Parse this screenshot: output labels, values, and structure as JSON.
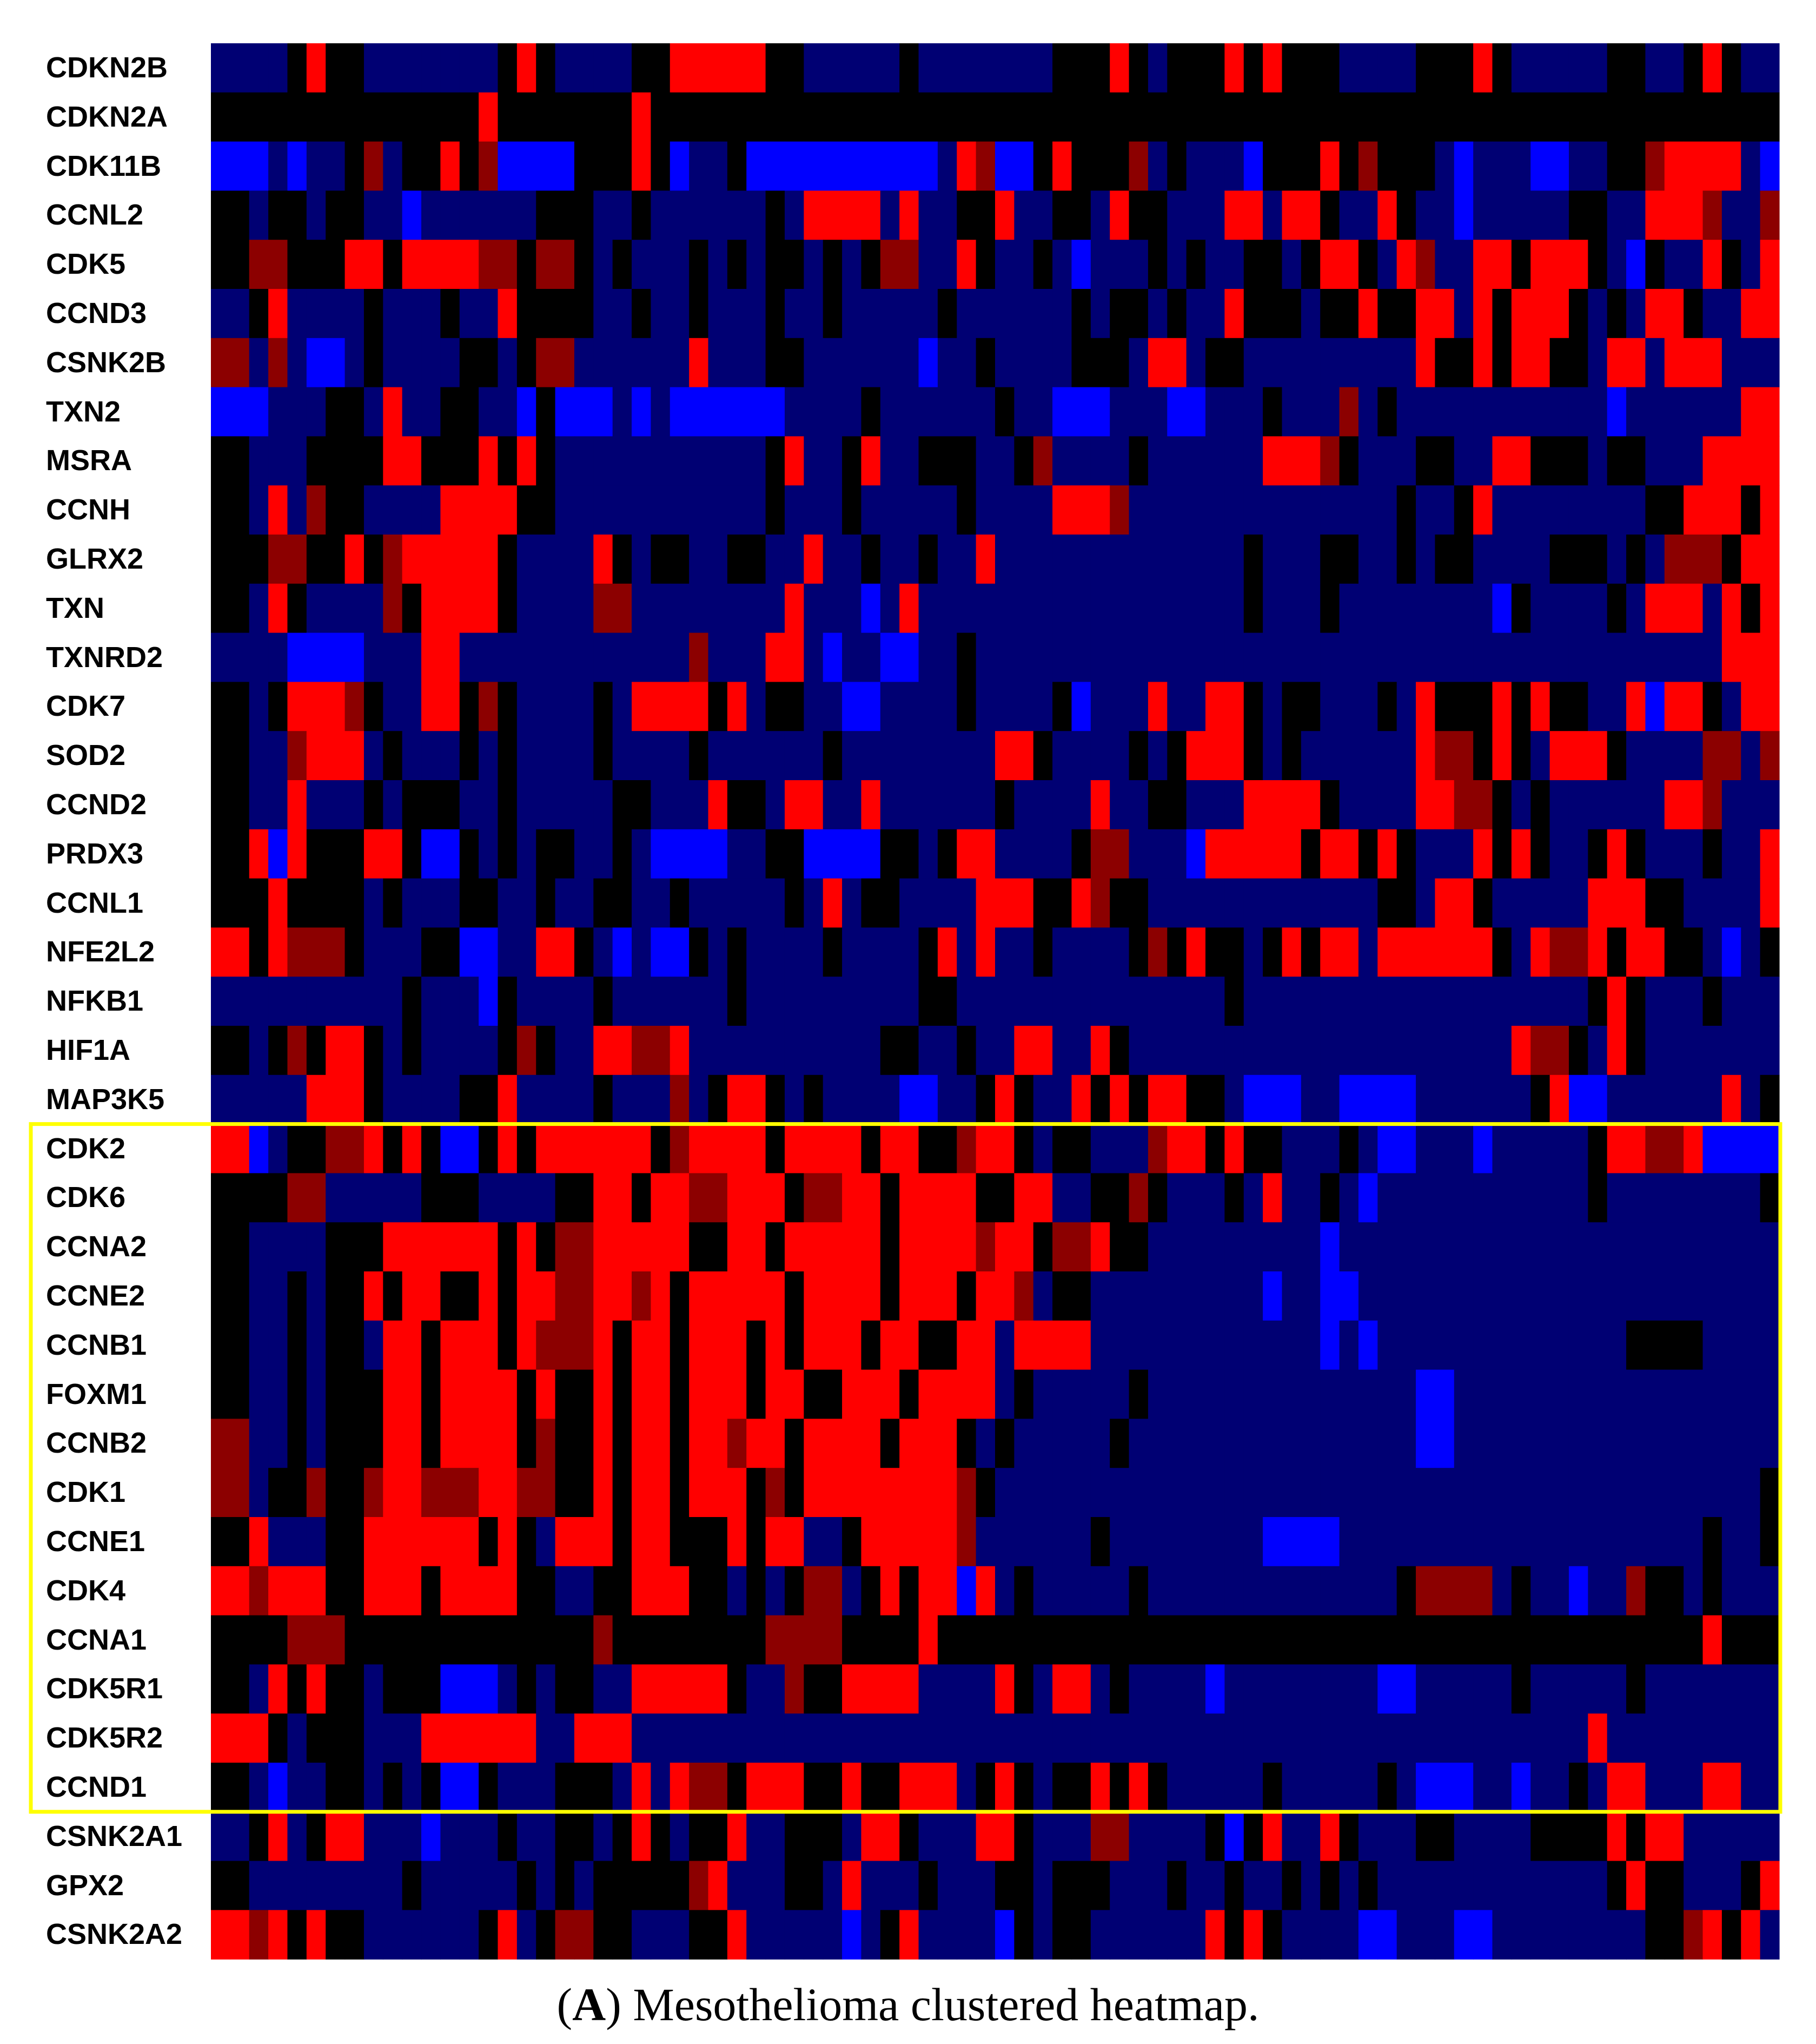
{
  "caption": {
    "panel_letter": "A",
    "text": "Mesothelioma clustered heatmap."
  },
  "chart_data": {
    "type": "heatmap",
    "title": "",
    "xlabel": "",
    "ylabel": "",
    "row_labels": [
      "CDKN2B",
      "CDKN2A",
      "CDK11B",
      "CCNL2",
      "CDK5",
      "CCND3",
      "CSNK2B",
      "TXN2",
      "MSRA",
      "CCNH",
      "GLRX2",
      "TXN",
      "TXNRD2",
      "CDK7",
      "SOD2",
      "CCND2",
      "PRDX3",
      "CCNL1",
      "NFE2L2",
      "NFKB1",
      "HIF1A",
      "MAP3K5",
      "CDK2",
      "CDK6",
      "CCNA2",
      "CCNE2",
      "CCNB1",
      "FOXM1",
      "CCNB2",
      "CDK1",
      "CCNE1",
      "CDK4",
      "CCNA1",
      "CDK5R1",
      "CDK5R2",
      "CCND1",
      "CSNK2A1",
      "GPX2",
      "CSNK2A2"
    ],
    "n_columns": 82,
    "color_scale": {
      "low": "#0000ff",
      "mid": "#000000",
      "high": "#ff0000"
    },
    "value_range": [
      -1,
      1
    ],
    "highlighted_rows": {
      "first": "CDK2",
      "last": "CCND1",
      "box_color": "#ffff00"
    },
    "row_patterns": {
      "CDKN2B": "bbb R bbbbbb R bbb  RRRR  bbbb bbbbbb  R b  R R  bbbb  R bbbb  b R bb",
      "CDKN2A": "kkkkkkkkkkkk R kkkk R kkkk k kkkkkkkkkkkkkkkkkkkkkkkkkkkkkkkkkkkkkkkkkkkkkkkk",
      "CDK11B": "BBbBbkrbkRkrBBBk RkBbkBBBBBBBBbRrBkRk rbkbbBkkRkr kbBbbBBbkkrRRRbB",
      "CCNL2": "kbkkbkbbBbbbbbkkbbkbbbbbkbRRRbRbkkRbbkbRkkbbRRbRkbbRkbBbbbbkkbbRRrbbr",
      "CDK5": "krrkkRRkRRRrrkrkbkbbkbkbkbkbkrbbRkbkbBbbkbkbkkbkRkbRrbRRkRRkbBkbRkbR",
      "CCND3": "bkRbbbkbbbkbRkkkkbkbbkbbkbbkbbbbkbbbbbkbkbkbbRkkbkkRkRRbRkRRkbkbRkbbRR",
      "CSNK2B": "rbrbBbkbbbkkbkrbbbbbRbbbkbbbbbBbbkbbbkkbRRbkbbbbbbbbRkRkRRkbRRbRRbbb",
      "TXN2": "BBbbbkbRbbkbbBkBBbBbBBBBBbbbkbbbbbkbbBBbbbBbbbkbbrbkbbbbbbbbbBbbbbbRR",
      "MSRA": "kbbbkkkRRkkRkRkbbbbbbbbbkRbkRbbkkbbkrbbbkbbbbbRRrkbbbkbbRRkkbkkbbRRRR",
      "CCNH": "kbRbrkbbbbRRRkkbbbbbbbbbkbbkbbbbkbbbbRRrbbbbbbbbbbbbkbkRbbbbbbbkRRRkR",
      "GLRX2": "kkrrkRkrRRRRkbbbRkbkbbkkbRbbkbkbbRbbbbbbbbbbkbbbkbbkbkbbbbkkbkbrrkRR",
      "TXN": "kbRkbbbrkRRRkbbbrrbbbbbbbRbbBbRbbbbbbbbbbbbbbkbbkbbbbbbbBkbbbkbRRbRkR",
      "TXNRD2": "bbbBBBbbbRbbbbbbbbbbrbbbRbBbbBbbkbbbbbbbbbbbbbbbbbbbbbbbbbbbbbbbbRRR",
      "CDK7": "kbkRRrkbbRkrkbbbkbRRRkRbkbbBBbbbkbbbkBbbRbbRkbkkbbkbRkkRkRkbbRBRkbRR",
      "SOD2": "kbbrRRbkbbkbkbbbkbbbkbbbbbkbbbbbbbRkbbbkbkRRkbkbbbbbRrkRkbRRkbbbrrbr",
      "CCND2": "kbbRbbkbkkbbkbbbbkbbbRkbRRbRbbbbbkbbbRbbkbbbRRRkbbbRRrkbkbbbbbRrbbb",
      "PRDX3": "kRBRkkRRkBkbkbkbbkbBBBbbkBBBBkbkRRbbbkrbbbBRRRRkRkRkbbRkRkbkRkbbkbbR",
      "CCNL1": "kkRkkkbkbbbkbbkbbkbbkbbbbkbRbkbbbbRRkkRrkbbbbbbbbbbbkbRRkbbbbRRRkbbbbR",
      "NFE2L2": "RkRrrkbbbkBBbbRkbBbBkbkbbbkbbbkRbRbkbbbkrkRkbkRkRbRRRRRkbRrRkRRkbBbk",
      "NFKB1": "bbbbbbbbkbbBkbbbkbbbbbkbbbbbbbbkbbbbbbbbbbbbkbbbbbbbbbbbbbbbkRkbbkbbb",
      "HIF1A": "kbkrkRkbkbbbkrkbRRrrRbbbbbbbbkkbkbbRRbRkbbbbbbbbbbbbbbbbbRrkbRkbbbbbb",
      "MAP3K5": "bbbbRRkbbbkkRbbbkbbrbkRkbkbbbBBbkRkbRkRkRkkbBBbbBBBbbbbbkRBbbbbbRbk",
      "CDK2": "RBbkkrRkRkBkRkRRRRRkrRRRkRRRkRRkrRRkbkbbbrRkRkkbbkbBBbbBbbbbkRRrRBBBB",
      "CDK6": "kkkrrbbbbkkbbbbkRRkRRrRRRkrRRkRRRkkRRbkkrkbbkbRbkbBbbbbbbbbbkbbbbbbbk",
      "CCNA2": "kbbbbkkRRRRRkRkrRRRRRkRRkRRRRkRRRrRRkrRkkbbbbbbbBbbbbbbbbbbbbbbbbbbbb",
      "CCNE2": "kbbkbkRkRRkRkRRrRRrRkRRRRkRRRkRRkRRrbkbbbbbbbbBbBBbbbbbbbbbbbbbbbbbbb",
      "CCNB1": "kbbkbkbRRkRRkRrrRkRRkRRkRkRRkRRkRRbRRRbbbbbbbbbbBbBbbbbbbbbbbbkkkbbbb",
      "FOXM1": "kbbkbkkRRkRRRkRkRkRRkRRkRRkRRRkRRRbkbbbbkbbbbbbbbbbbbBbbbbbbbbbbbbbbb",
      "CCNB2": "rbbkbkkRRkRRRkrkRkRRkRrRRkRRRkRRkbkbbbbkbbbbbbbbbbbbbBbbbbbbbbbbbbbbb",
      "CDK1": "rbkkrkrRRrrRRrrkRkRRkRRkrkRRRRRRrkbbbbbbbbbbbbbbbbbbbbbbbbbbbbbbbbbbk",
      "CCNE1": "kRbbbkRRRRRkRkbRRkRRkkRkRRbkRRRRrbbbbbkbbbbbbbBBBbbbbbbbbbbbbbbbbkbbk",
      "CDK4": "RrRRRkRRRkRRRkkbkkRRRkbkbkrbkRkRBRbkbbbbkbbbbbbbbbbbkrrrbkbBbbrkbkbbb",
      "CCNA1": "kkkrrkkkkkkkkkkkrkkkkkkkrrrkkkRkkkkkkkkkkkkkkkkkkkkkkkkkkkkkkkkkRkkk",
      "CDK5R1": "kbRkRkbkkkBBbkbkbbRRRRkbbrkRRRRbbbRkbRbkbbbBbbbbbbbBBbbbbkbbbbkbbbbbb",
      "CDK5R2": "RRkbkkbbbRRRRRbRRRbbbbbbbbbbbbbbbbbbbbbbbbbbbbbbbbbbbbbbbbbRbbbbbbbb",
      "CCND1": "kbBbbkbkbkBkbbbkkbRbRrkRRRkRkkRRbkRkbkRkRkbbbbkbbbbkbBBbbBbkbRRbbRRbb",
      "CSNK2A1": "bkRbkRbbbBbbkbbkbkRkbkRbbkkbRRkbbRRkbbrrbbbkBkRbRkbbbkbbbbkkkRkRbbbbb",
      "GPX2": "kbbbbbbbkbbbbkbkbkkkkrRbbkkbRbbkbbbkbkkkbbkbbkbkbkbkbbbbbbbbbbkRkbbbkR",
      "CSNK2A2": "RrRkRkbbbbbkRbkrkkbbbkRbbbbBbkRbbbBkbkbbbbbRkRkbbbBBbbBBbbbbbbbkrRkRb"
    }
  }
}
